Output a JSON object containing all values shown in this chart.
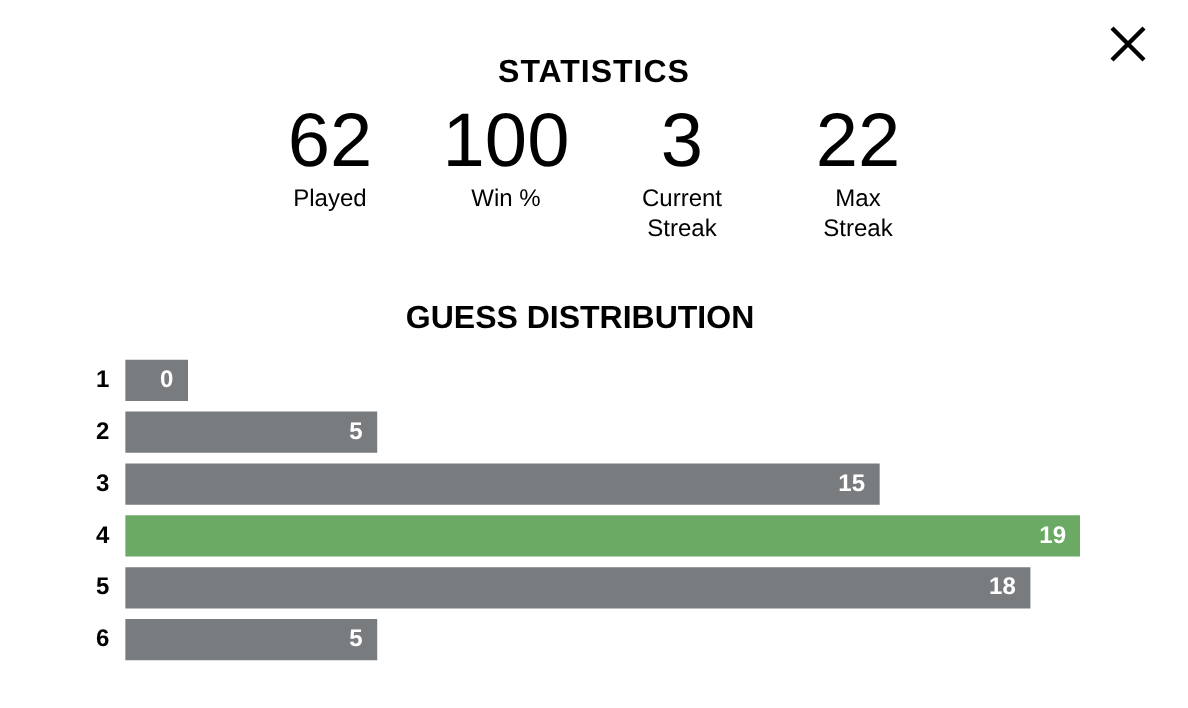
{
  "chart_data": [
    {
      "type": "other",
      "title": "STATISTICS",
      "annotations": [
        "62",
        "Played",
        "100",
        "Win %",
        "3",
        "Current Streak",
        "22",
        "Max Streak"
      ]
    },
    {
      "type": "bar",
      "orientation": "horizontal",
      "title": "GUESS DISTRIBUTION",
      "categories": [
        "1",
        "2",
        "3",
        "4",
        "5",
        "6"
      ],
      "values": [
        0,
        5,
        15,
        19,
        18,
        5
      ],
      "colors": [
        "#787c7e",
        "#787c7e",
        "#787c7e",
        "#6aaa64",
        "#787c7e",
        "#787c7e"
      ],
      "xlim": [
        0,
        19
      ],
      "data_labels": true,
      "tick_labels": "y",
      "legend": false
    }
  ]
}
